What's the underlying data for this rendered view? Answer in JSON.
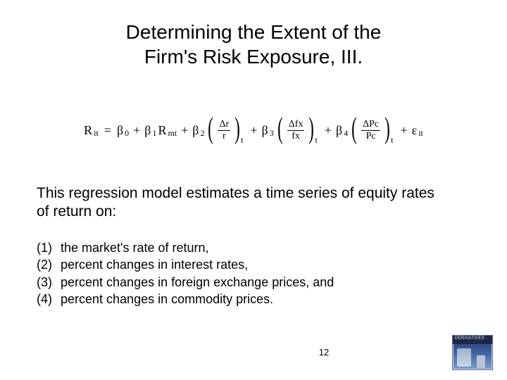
{
  "title_line1": "Determining the Extent of the",
  "title_line2": "Firm's Risk Exposure, III.",
  "equation": {
    "lhs_var": "R",
    "lhs_sub": "it",
    "eq": "=",
    "b0": "β",
    "b0_sub": "0",
    "plus1": "+",
    "b1": "β",
    "b1_sub": "1",
    "b1_var": "R",
    "b1_var_sub": "mt",
    "plus2": "+",
    "b2": "β",
    "b2_sub": "2",
    "frac2_num": "Δr",
    "frac2_den": "r",
    "frac2_sub": "t",
    "plus3": "+",
    "b3": "β",
    "b3_sub": "3",
    "frac3_num": "Δfx",
    "frac3_den": "fx",
    "frac3_sub": "t",
    "plus4": "+",
    "b4": "β",
    "b4_sub": "4",
    "frac4_num": "ΔPc",
    "frac4_den": "Pc",
    "frac4_sub": "t",
    "plus5": "+",
    "eps": "ε",
    "eps_sub": "it"
  },
  "body_text": "This regression model estimates a time series of equity rates of return on:",
  "list": [
    {
      "n": "(1)",
      "t": "the market's rate of return,"
    },
    {
      "n": "(2)",
      "t": "percent changes in interest rates,"
    },
    {
      "n": "(3)",
      "t": "percent changes in foreign exchange prices, and"
    },
    {
      "n": "(4)",
      "t": "percent changes in commodity prices."
    }
  ],
  "page_number": "12",
  "thumb_label": "DERIVATIVES"
}
